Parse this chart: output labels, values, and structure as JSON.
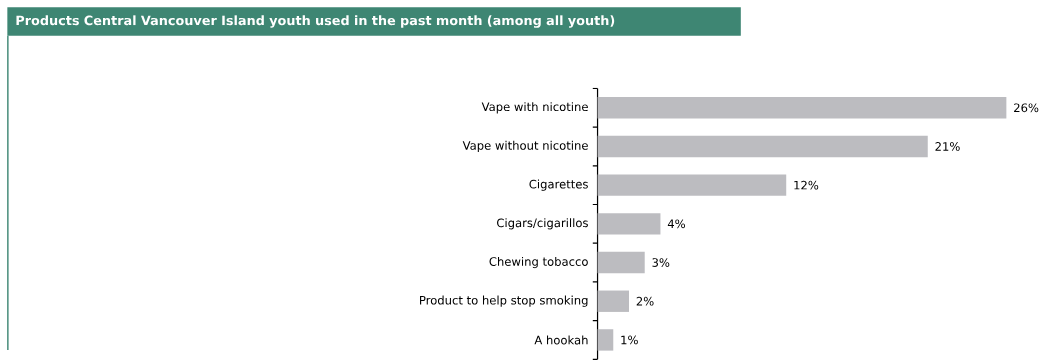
{
  "chart_data": {
    "type": "bar",
    "orientation": "horizontal",
    "title": "Products Central Vancouver Island youth used in the past month (among all youth)",
    "categories": [
      "Vape with nicotine",
      "Vape without nicotine",
      "Cigarettes",
      "Cigars/cigarillos",
      "Chewing tobacco",
      "Product to help stop smoking",
      "A hookah"
    ],
    "values": [
      26,
      21,
      12,
      4,
      3,
      2,
      1
    ],
    "value_labels": [
      "26%",
      "21%",
      "12%",
      "4%",
      "3%",
      "2%",
      "1%"
    ],
    "color": "#bcbcc0"
  }
}
